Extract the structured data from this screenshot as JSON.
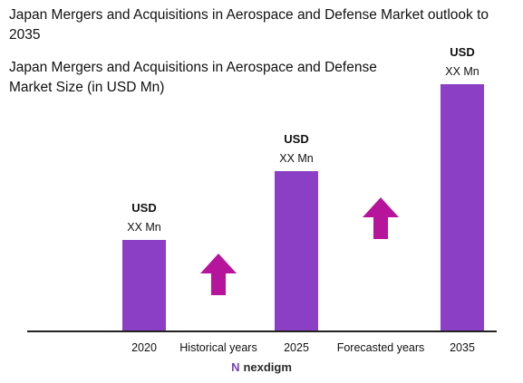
{
  "header": {
    "title": "Japan Mergers and Acquisitions in Aerospace and Defense Market outlook to 2035",
    "subtitle": "Japan Mergers and Acquisitions in Aerospace and Defense Market Size (in USD Mn)"
  },
  "brand": {
    "name": "nexdigm",
    "logo_glyph": "N"
  },
  "colors": {
    "bar": "#8a3fc4",
    "arrow": "#b5149b",
    "axis": "#222222"
  },
  "chart_data": {
    "type": "bar",
    "title": "Japan Mergers and Acquisitions in Aerospace and Defense Market outlook to 2035",
    "subtitle": "Japan Mergers and Acquisitions in Aerospace and Defense Market Size (in USD Mn)",
    "categories": [
      "2020",
      "2025",
      "2035"
    ],
    "values": [
      100,
      176,
      272
    ],
    "value_labels": [
      {
        "unit": "USD",
        "value": "XX Mn"
      },
      {
        "unit": "USD",
        "value": "XX Mn"
      },
      {
        "unit": "USD",
        "value": "XX Mn"
      }
    ],
    "period_labels": [
      "Historical years",
      "Forecasted years"
    ],
    "trend_arrows": [
      "up",
      "up"
    ],
    "ylim": [
      0,
      300
    ],
    "grid": false,
    "legend": "none"
  }
}
